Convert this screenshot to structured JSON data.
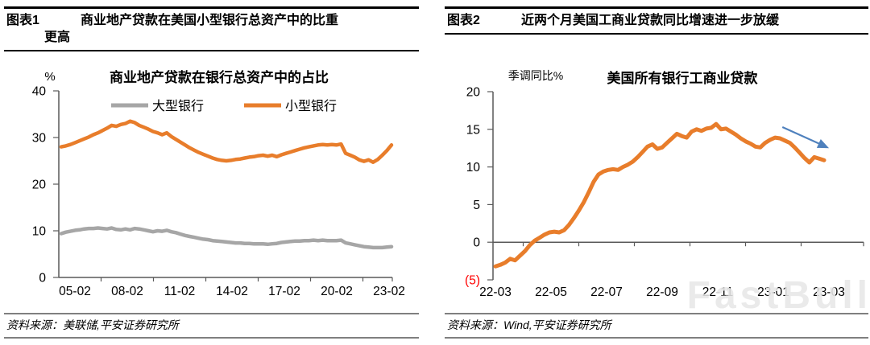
{
  "figure1": {
    "label": "图表1",
    "title_line1": "商业地产贷款在美国小型银行总资产中的比重",
    "title_line2": "更高",
    "source": "资料来源：美联储,平安证券研究所"
  },
  "figure2": {
    "label": "图表2",
    "title_line1": "近两个月美国工商业贷款同比增速进一步放缓",
    "source": "资料来源：Wind,平安证券研究所"
  },
  "watermark": "FastBull",
  "colors": {
    "orange_line": "#E87D2B",
    "gray_line": "#A6A6A6",
    "arrow_blue": "#4F81BD",
    "negative_red": "#FF0000",
    "axis_gray": "#595959",
    "rule_gray": "#7F7F7F",
    "watermark_gray": "#E7E7E7"
  },
  "chart_data": [
    {
      "type": "line",
      "title": "商业地产贷款在银行总资产中的占比",
      "xlabel": "",
      "ylabel": "%",
      "ylim": [
        0,
        40
      ],
      "grid": false,
      "legend_position": "top",
      "legend": [
        "大型银行",
        "小型银行"
      ],
      "yticks": [
        {
          "v": 0,
          "label": "0"
        },
        {
          "v": 10,
          "label": "10"
        },
        {
          "v": 20,
          "label": "20"
        },
        {
          "v": 30,
          "label": "30"
        },
        {
          "v": 40,
          "label": "40"
        }
      ],
      "x_tick_labels": [
        "05-02",
        "08-02",
        "11-02",
        "14-02",
        "17-02",
        "20-02",
        "23-02"
      ],
      "series": [
        {
          "name": "大型银行",
          "color": "#A6A6A6",
          "values": [
            9.4,
            9.7,
            9.9,
            10.1,
            10.2,
            10.4,
            10.5,
            10.5,
            10.6,
            10.5,
            10.4,
            10.6,
            10.3,
            10.2,
            10.4,
            10.2,
            10.5,
            10.4,
            10.2,
            10.0,
            9.8,
            10.0,
            9.9,
            10.1,
            9.8,
            9.6,
            9.3,
            9.0,
            8.8,
            8.6,
            8.4,
            8.2,
            8.1,
            7.9,
            7.8,
            7.7,
            7.6,
            7.5,
            7.4,
            7.4,
            7.3,
            7.3,
            7.2,
            7.2,
            7.2,
            7.1,
            7.2,
            7.3,
            7.5,
            7.6,
            7.7,
            7.8,
            7.8,
            7.9,
            7.9,
            8.0,
            7.9,
            8.0,
            7.9,
            7.9,
            7.9,
            8.0,
            7.4,
            7.2,
            7.0,
            6.8,
            6.6,
            6.5,
            6.4,
            6.4,
            6.4,
            6.5,
            6.6
          ]
        },
        {
          "name": "小型银行",
          "color": "#E87D2B",
          "values": [
            28.0,
            28.2,
            28.5,
            28.9,
            29.3,
            29.7,
            30.1,
            30.6,
            31.0,
            31.5,
            32.0,
            32.6,
            32.4,
            32.8,
            33.0,
            33.5,
            33.2,
            32.6,
            32.2,
            31.8,
            31.3,
            31.0,
            30.6,
            31.0,
            30.2,
            29.6,
            29.0,
            28.4,
            27.8,
            27.3,
            26.8,
            26.4,
            26.0,
            25.6,
            25.3,
            25.1,
            25.0,
            25.1,
            25.3,
            25.4,
            25.6,
            25.8,
            25.9,
            26.1,
            26.2,
            26.0,
            26.2,
            25.9,
            26.3,
            26.6,
            26.9,
            27.2,
            27.5,
            27.8,
            28.0,
            28.2,
            28.4,
            28.5,
            28.4,
            28.5,
            28.4,
            28.6,
            26.6,
            26.2,
            25.8,
            25.2,
            24.9,
            25.2,
            24.7,
            25.3,
            26.2,
            27.2,
            28.4
          ]
        }
      ]
    },
    {
      "type": "line",
      "title": "美国所有银行工商业贷款",
      "xlabel": "",
      "ylabel": "季调同比%",
      "ylim": [
        -5,
        20
      ],
      "xaxis_at": 0,
      "grid": false,
      "yticks": [
        {
          "v": -5,
          "label": "(5)",
          "color": "#FF0000"
        },
        {
          "v": 0,
          "label": "0"
        },
        {
          "v": 5,
          "label": "5"
        },
        {
          "v": 10,
          "label": "10"
        },
        {
          "v": 15,
          "label": "15"
        },
        {
          "v": 20,
          "label": "20"
        }
      ],
      "x_tick_labels": [
        "22-03",
        "22-05",
        "22-07",
        "22-09",
        "22-11",
        "23-01",
        "23-03"
      ],
      "series": [
        {
          "name": "美国所有银行工商业贷款",
          "color": "#E87D2B",
          "values": [
            -3.2,
            -3.0,
            -2.7,
            -2.2,
            -2.4,
            -1.8,
            -1.2,
            -0.4,
            0.2,
            0.6,
            1.0,
            1.3,
            1.4,
            1.3,
            1.6,
            2.3,
            3.2,
            4.2,
            5.3,
            6.6,
            8.0,
            9.0,
            9.4,
            9.6,
            9.7,
            9.6,
            10.0,
            10.3,
            10.7,
            11.3,
            12.0,
            12.7,
            13.0,
            12.4,
            12.6,
            13.2,
            13.8,
            14.4,
            14.1,
            13.9,
            14.7,
            15.0,
            14.8,
            15.1,
            15.2,
            15.7,
            15.0,
            15.1,
            14.7,
            14.3,
            13.8,
            13.4,
            13.1,
            12.7,
            12.6,
            13.2,
            13.6,
            13.9,
            13.8,
            13.5,
            13.2,
            12.6,
            11.9,
            11.2,
            10.6,
            11.3,
            11.1,
            10.9
          ]
        }
      ],
      "annotation_arrow": {
        "from": [
          58.5,
          15.3
        ],
        "to": [
          68,
          12.5
        ],
        "color": "#4F81BD"
      }
    }
  ]
}
